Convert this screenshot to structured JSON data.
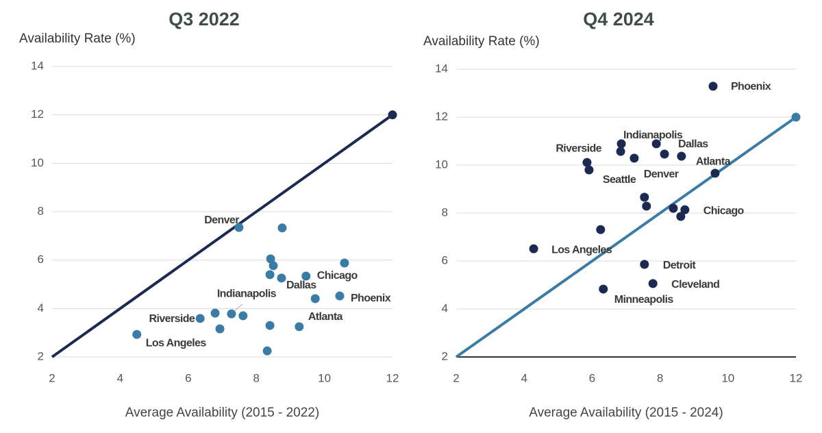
{
  "chart_data": [
    {
      "type": "scatter",
      "title": "Q3 2022",
      "y_label": "Availability Rate (%)",
      "x_label": "Average Availability (2015 - 2022)",
      "xlim": [
        2,
        12
      ],
      "ylim": [
        2,
        14
      ],
      "xticks": [
        2,
        4,
        6,
        8,
        10,
        12
      ],
      "yticks": [
        2,
        4,
        6,
        8,
        10,
        12,
        14
      ],
      "grid": true,
      "color": "#3a7ca5",
      "x": [
        7.49,
        8.76,
        8.42,
        8.5,
        8.4,
        8.74,
        9.46,
        10.59,
        9.73,
        10.45,
        7.27,
        6.79,
        7.61,
        6.35,
        6.93,
        8.4,
        9.26,
        4.49,
        8.32
      ],
      "y": [
        7.35,
        7.33,
        6.05,
        5.77,
        5.4,
        5.26,
        5.34,
        5.88,
        4.41,
        4.52,
        3.78,
        3.81,
        3.7,
        3.59,
        3.16,
        3.3,
        3.25,
        2.93,
        2.25
      ],
      "labels": [
        "Denver",
        null,
        null,
        null,
        null,
        "Dallas",
        "Chicago",
        null,
        null,
        "Phoenix",
        "Indianapolis",
        null,
        null,
        "Riverside",
        null,
        null,
        "Atlanta",
        "Los Angeles",
        null
      ],
      "highlight_index": 9,
      "reference_line": {
        "x": [
          2,
          12
        ],
        "y": [
          2,
          12
        ],
        "color": "#1c2951"
      }
    },
    {
      "type": "scatter",
      "title": "Q4 2024",
      "y_label": "Availability Rate (%)",
      "x_label": "Average Availability (2015 - 2024)",
      "xlim": [
        2,
        12
      ],
      "ylim": [
        2,
        14
      ],
      "xticks": [
        2,
        4,
        6,
        8,
        10,
        12
      ],
      "yticks": [
        2,
        4,
        6,
        8,
        10,
        12,
        14
      ],
      "grid": true,
      "color": "#1c2951",
      "baseline_color": "#333333",
      "x": [
        9.56,
        6.86,
        6.84,
        7.89,
        8.13,
        7.24,
        8.63,
        5.85,
        5.91,
        9.62,
        7.54,
        7.6,
        8.39,
        8.73,
        8.61,
        6.25,
        4.28,
        7.54,
        7.79,
        6.33
      ],
      "y": [
        13.29,
        10.89,
        10.57,
        10.89,
        10.46,
        10.29,
        10.37,
        10.11,
        9.8,
        9.66,
        8.66,
        8.29,
        8.2,
        8.14,
        7.86,
        7.31,
        6.51,
        5.86,
        5.06,
        4.83
      ],
      "labels": [
        "Phoenix",
        "Indianapolis",
        null,
        null,
        "Dallas",
        null,
        "Atlanta",
        "Riverside",
        "Seattle",
        null,
        "Denver",
        null,
        null,
        "Chicago",
        null,
        null,
        "Los Angeles",
        "Detroit",
        "Cleveland",
        "Minneapolis"
      ],
      "highlight_index": 0,
      "reference_line": {
        "x": [
          2,
          12
        ],
        "y": [
          2,
          12
        ],
        "color": "#3a7ca5"
      }
    }
  ]
}
